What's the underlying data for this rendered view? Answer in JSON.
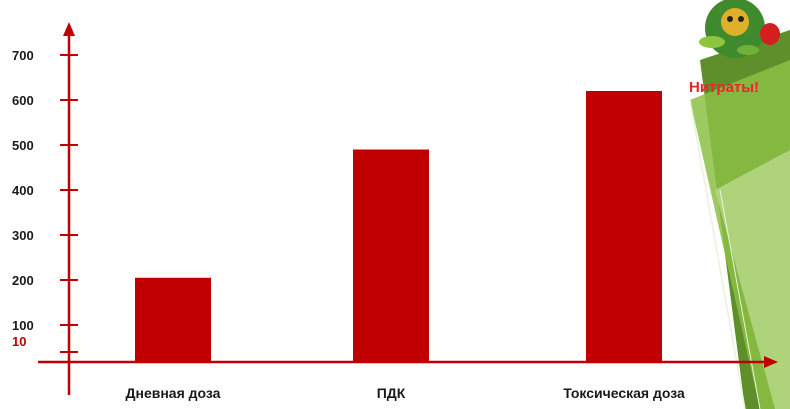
{
  "chart_data": {
    "type": "bar",
    "title": "",
    "categories": [
      "Дневная доза",
      "ПДК",
      "Токсическая доза"
    ],
    "values": [
      205,
      490,
      620
    ],
    "y_ticks": [
      100,
      200,
      300,
      400,
      500,
      600,
      700
    ],
    "y_special_tick": "10",
    "ylim": [
      0,
      700
    ],
    "xlabel": "",
    "ylabel": "",
    "grid": false,
    "legend": "none",
    "colors": {
      "bar": "#c00000",
      "axis": "#c00000",
      "accent_green": "#7cae3c"
    }
  },
  "badge": {
    "label": "Нитраты!",
    "icon": "vegetable-character-icon"
  }
}
